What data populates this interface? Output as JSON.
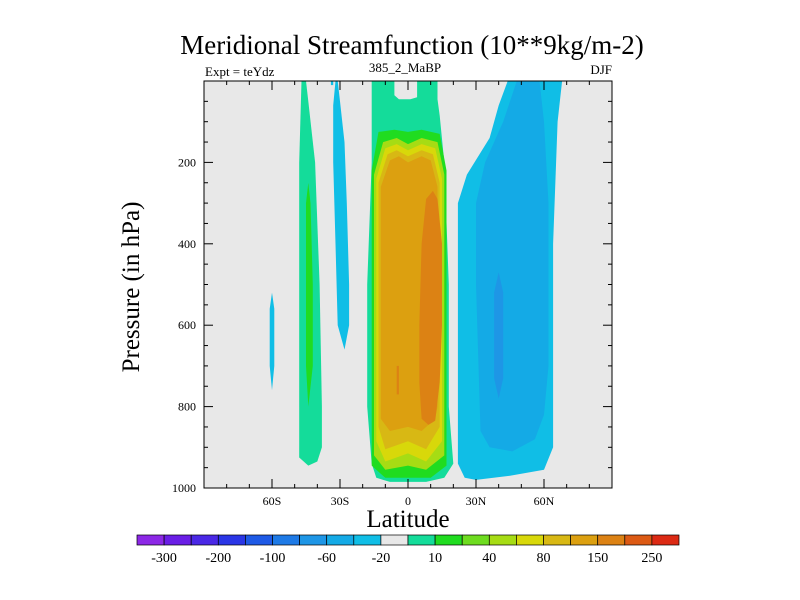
{
  "chart_data": {
    "type": "heatmap",
    "title": "Meridional Streamfunction (10**9kg/m-2)",
    "subtitle_left": "Expt = teYdz",
    "subtitle_center": "385_2_MaBP",
    "subtitle_right": "DJF",
    "xlabel": "Latitude",
    "ylabel": "Pressure (in hPa)",
    "xlim": [
      -90,
      90
    ],
    "ylim": [
      1000,
      0
    ],
    "x_ticks": [
      {
        "value": -60,
        "label": "60S"
      },
      {
        "value": -30,
        "label": "30S"
      },
      {
        "value": 0,
        "label": "0"
      },
      {
        "value": 30,
        "label": "30N"
      },
      {
        "value": 60,
        "label": "60N"
      }
    ],
    "y_ticks": [
      {
        "value": 200,
        "label": "200"
      },
      {
        "value": 400,
        "label": "400"
      },
      {
        "value": 600,
        "label": "600"
      },
      {
        "value": 800,
        "label": "800"
      },
      {
        "value": 1000,
        "label": "1000"
      }
    ],
    "background_color": "#e8e8e8",
    "colorbar": {
      "colors": [
        "#8c28e6",
        "#6a1ee6",
        "#4a28e6",
        "#2a36e6",
        "#1e5ae6",
        "#1e7ae6",
        "#1e96e6",
        "#14aae6",
        "#10bee6",
        "#e8e8e8",
        "#14dc9a",
        "#20dc20",
        "#6edc20",
        "#a6dc14",
        "#d8d80a",
        "#d8b814",
        "#dca010",
        "#dc8214",
        "#dc5a14",
        "#dc2a14"
      ],
      "labels": [
        "-300",
        "-200",
        "-100",
        "-60",
        "-20",
        "10",
        "40",
        "80",
        "150",
        "250"
      ]
    },
    "regions": [
      {
        "name": "ne-outer-10",
        "color": "#14dc9a",
        "poly": [
          [
            -16,
            0
          ],
          [
            13,
            0
          ],
          [
            13,
            45
          ],
          [
            14,
            85
          ],
          [
            16,
            200
          ],
          [
            18,
            500
          ],
          [
            18,
            800
          ],
          [
            20,
            940
          ],
          [
            16,
            975
          ],
          [
            8,
            985
          ],
          [
            0,
            985
          ],
          [
            -8,
            985
          ],
          [
            -14,
            975
          ],
          [
            -16,
            940
          ],
          [
            -18,
            800
          ],
          [
            -18,
            500
          ],
          [
            -16,
            200
          ],
          [
            -16,
            0
          ]
        ]
      },
      {
        "name": "ne-gap",
        "color": "#e8e8e8",
        "poly": [
          [
            -6,
            0
          ],
          [
            4,
            0
          ],
          [
            4,
            40
          ],
          [
            1,
            45
          ],
          [
            -4,
            45
          ],
          [
            -6,
            35
          ]
        ]
      },
      {
        "name": "ne-40",
        "color": "#20dc20",
        "poly": [
          [
            -16,
            220
          ],
          [
            -13,
            125
          ],
          [
            -6,
            120
          ],
          [
            0,
            125
          ],
          [
            6,
            120
          ],
          [
            14,
            130
          ],
          [
            17,
            220
          ],
          [
            17,
            500
          ],
          [
            17,
            800
          ],
          [
            17,
            945
          ],
          [
            10,
            975
          ],
          [
            0,
            975
          ],
          [
            -10,
            975
          ],
          [
            -16,
            945
          ],
          [
            -16,
            800
          ],
          [
            -16,
            500
          ]
        ]
      },
      {
        "name": "ne-80",
        "color": "#a6dc14",
        "poly": [
          [
            -15,
            230
          ],
          [
            -11,
            150
          ],
          [
            -5,
            140
          ],
          [
            0,
            155
          ],
          [
            6,
            140
          ],
          [
            13,
            150
          ],
          [
            16,
            230
          ],
          [
            16,
            500
          ],
          [
            16,
            800
          ],
          [
            16,
            920
          ],
          [
            8,
            955
          ],
          [
            0,
            945
          ],
          [
            -10,
            955
          ],
          [
            -15,
            920
          ],
          [
            -15,
            800
          ],
          [
            -15,
            500
          ]
        ]
      },
      {
        "name": "ne-100",
        "color": "#d8d80a",
        "poly": [
          [
            -14,
            240
          ],
          [
            -10,
            165
          ],
          [
            -5,
            155
          ],
          [
            0,
            170
          ],
          [
            6,
            155
          ],
          [
            12,
            165
          ],
          [
            15,
            240
          ],
          [
            15,
            500
          ],
          [
            15,
            800
          ],
          [
            15,
            885
          ],
          [
            8,
            935
          ],
          [
            0,
            915
          ],
          [
            -10,
            935
          ],
          [
            -14,
            885
          ],
          [
            -14,
            800
          ],
          [
            -14,
            500
          ]
        ]
      },
      {
        "name": "ne-150",
        "color": "#d8b814",
        "poly": [
          [
            -13,
            250
          ],
          [
            -9,
            180
          ],
          [
            -5,
            170
          ],
          [
            0,
            185
          ],
          [
            6,
            170
          ],
          [
            11,
            180
          ],
          [
            14,
            250
          ],
          [
            14,
            500
          ],
          [
            14,
            800
          ],
          [
            14,
            850
          ],
          [
            8,
            905
          ],
          [
            0,
            885
          ],
          [
            -10,
            905
          ],
          [
            -13,
            850
          ],
          [
            -13,
            800
          ],
          [
            -13,
            500
          ]
        ]
      },
      {
        "name": "ne-200",
        "color": "#dca010",
        "poly": [
          [
            -12,
            260
          ],
          [
            -8,
            195
          ],
          [
            -4,
            185
          ],
          [
            0,
            200
          ],
          [
            6,
            185
          ],
          [
            10,
            195
          ],
          [
            13,
            260
          ],
          [
            13,
            500
          ],
          [
            13,
            800
          ],
          [
            12,
            830
          ],
          [
            6,
            860
          ],
          [
            0,
            850
          ],
          [
            -8,
            860
          ],
          [
            -12,
            830
          ],
          [
            -12,
            800
          ],
          [
            -12,
            500
          ]
        ]
      },
      {
        "name": "ne-core-250",
        "color": "#dc8214",
        "poly": [
          [
            11,
            270
          ],
          [
            13,
            290
          ],
          [
            15,
            400
          ],
          [
            15,
            600
          ],
          [
            14,
            740
          ],
          [
            12,
            835
          ],
          [
            9,
            845
          ],
          [
            6,
            830
          ],
          [
            5,
            740
          ],
          [
            5,
            600
          ],
          [
            6,
            400
          ],
          [
            8,
            290
          ]
        ]
      },
      {
        "name": "ne-core-small",
        "color": "#dc8214",
        "poly": [
          [
            -5,
            700
          ],
          [
            -4,
            700
          ],
          [
            -4,
            770
          ],
          [
            -5,
            770
          ]
        ]
      },
      {
        "name": "neg-n-outer",
        "color": "#10bee6",
        "poly": [
          [
            44,
            0
          ],
          [
            68,
            0
          ],
          [
            66,
            100
          ],
          [
            64,
            400
          ],
          [
            64,
            700
          ],
          [
            64,
            900
          ],
          [
            60,
            955
          ],
          [
            45,
            970
          ],
          [
            30,
            980
          ],
          [
            25,
            975
          ],
          [
            22,
            940
          ],
          [
            22,
            300
          ],
          [
            26,
            230
          ],
          [
            36,
            140
          ],
          [
            40,
            60
          ]
        ]
      },
      {
        "name": "neg-n-20",
        "color": "#14aae6",
        "poly": [
          [
            48,
            0
          ],
          [
            58,
            0
          ],
          [
            60,
            100
          ],
          [
            62,
            300
          ],
          [
            62,
            500
          ],
          [
            62,
            700
          ],
          [
            60,
            820
          ],
          [
            56,
            880
          ],
          [
            46,
            910
          ],
          [
            36,
            900
          ],
          [
            32,
            860
          ],
          [
            30,
            500
          ],
          [
            30,
            300
          ],
          [
            34,
            200
          ],
          [
            42,
            100
          ]
        ]
      },
      {
        "name": "neg-n-60",
        "color": "#1e96e6",
        "poly": [
          [
            40,
            470
          ],
          [
            42,
            520
          ],
          [
            42,
            650
          ],
          [
            42,
            730
          ],
          [
            40,
            780
          ],
          [
            38,
            730
          ],
          [
            38,
            650
          ],
          [
            38,
            520
          ]
        ]
      },
      {
        "name": "pos-s-band",
        "color": "#14dc9a",
        "poly": [
          [
            -47,
            0
          ],
          [
            -45,
            0
          ],
          [
            -44,
            50
          ],
          [
            -41,
            200
          ],
          [
            -39,
            500
          ],
          [
            -38,
            800
          ],
          [
            -38,
            900
          ],
          [
            -40,
            935
          ],
          [
            -44,
            945
          ],
          [
            -48,
            925
          ],
          [
            -48,
            800
          ],
          [
            -48,
            500
          ],
          [
            -48,
            200
          ]
        ]
      },
      {
        "name": "pos-s-inner",
        "color": "#20dc20",
        "poly": [
          [
            -44,
            250
          ],
          [
            -43,
            300
          ],
          [
            -42,
            500
          ],
          [
            -42,
            700
          ],
          [
            -44,
            800
          ],
          [
            -45,
            700
          ],
          [
            -45,
            500
          ],
          [
            -45,
            300
          ]
        ]
      },
      {
        "name": "neg-s-band",
        "color": "#10bee6",
        "poly": [
          [
            -32,
            0
          ],
          [
            -31,
            0
          ],
          [
            -30,
            50
          ],
          [
            -28,
            150
          ],
          [
            -27,
            300
          ],
          [
            -26,
            500
          ],
          [
            -26,
            600
          ],
          [
            -28,
            660
          ],
          [
            -31,
            600
          ],
          [
            -32,
            400
          ],
          [
            -33,
            200
          ],
          [
            -33,
            60
          ]
        ]
      },
      {
        "name": "neg-s-top",
        "color": "#10bee6",
        "poly": [
          [
            -34,
            0
          ],
          [
            -33,
            0
          ],
          [
            -33,
            10
          ],
          [
            -34,
            10
          ]
        ]
      },
      {
        "name": "neg-s-pole",
        "color": "#10bee6",
        "poly": [
          [
            -61,
            560
          ],
          [
            -60,
            520
          ],
          [
            -59,
            560
          ],
          [
            -59,
            700
          ],
          [
            -60,
            760
          ],
          [
            -61,
            700
          ]
        ]
      }
    ]
  }
}
